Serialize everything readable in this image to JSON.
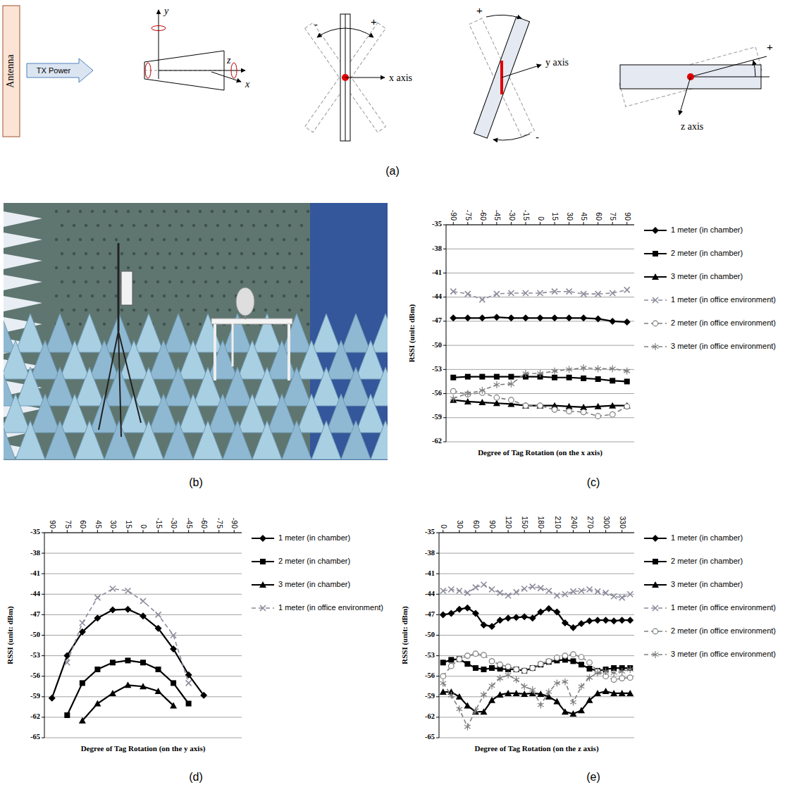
{
  "panels": [
    "(a)",
    "(b)",
    "(c)",
    "(d)",
    "(e)"
  ],
  "diagram": {
    "antenna": "Antenna",
    "tx_power": "TX Power",
    "axis_y": "y",
    "axis_z": "z",
    "axis_x": "x",
    "plus": "+",
    "minus": "-",
    "axis_labels": [
      "x axis",
      "y axis",
      "z axis"
    ]
  },
  "chart_data": [
    {
      "type": "line",
      "x_label": "Degree of Tag Rotation (on the x axis)",
      "y_label": "RSSI (unit: dBm)",
      "x": [
        -90,
        -75,
        -60,
        -45,
        -30,
        -15,
        0,
        15,
        30,
        45,
        60,
        75,
        90
      ],
      "xlim": [
        -97.5,
        97.5
      ],
      "xticks": [
        -90,
        -75,
        -60,
        -45,
        -30,
        -15,
        0,
        15,
        30,
        45,
        60,
        75,
        90
      ],
      "ylim": [
        -62,
        -35
      ],
      "yticks": [
        -35,
        -38,
        -41,
        -44,
        -47,
        -50,
        -53,
        -56,
        -59,
        -62
      ],
      "grid": true,
      "legend": "right",
      "series": [
        {
          "name": "1 meter (in chamber)",
          "color": "#000000",
          "marker": "diamond",
          "line_style": "solid",
          "values": [
            -46.6,
            -46.6,
            -46.6,
            -46.5,
            -46.6,
            -46.6,
            -46.6,
            -46.6,
            -46.6,
            -46.6,
            -46.7,
            -47,
            -47.1
          ]
        },
        {
          "name": "2 meter (in chamber)",
          "color": "#000000",
          "marker": "square",
          "line_style": "solid",
          "values": [
            -54,
            -53.9,
            -53.9,
            -53.9,
            -53.9,
            -53.9,
            -53.9,
            -54,
            -54,
            -54.1,
            -54.2,
            -54.4,
            -54.5
          ]
        },
        {
          "name": "3 meter (in chamber)",
          "color": "#000000",
          "marker": "triangle",
          "line_style": "solid",
          "values": [
            -56.8,
            -57,
            -57.1,
            -57.2,
            -57.3,
            -57.5,
            -57.5,
            -57.5,
            -57.6,
            -57.7,
            -57.6,
            -57.5,
            -57.5
          ]
        },
        {
          "name": "1 meter (in office environment)",
          "color": "#8c8c9c",
          "marker": "x",
          "line_style": "dashed",
          "values": [
            -43.3,
            -43.6,
            -44.3,
            -43.6,
            -43.5,
            -43.5,
            -43.5,
            -43.3,
            -43.3,
            -43.6,
            -43.6,
            -43.5,
            -43.1
          ]
        },
        {
          "name": "2 meter (in office environment)",
          "color": "#7f7f7f",
          "marker": "circle",
          "line_style": "dashed",
          "values": [
            -55.7,
            -56.1,
            -55.9,
            -56.5,
            -56.8,
            -57.5,
            -57.5,
            -58,
            -58.2,
            -58.3,
            -58.8,
            -58.6,
            -57.6
          ]
        },
        {
          "name": "3 meter (in office environment)",
          "color": "#7f7f7f",
          "marker": "asterisk",
          "line_style": "dashed",
          "values": [
            -56.6,
            -56,
            -55.6,
            -54.9,
            -54.8,
            -53.5,
            -53.5,
            -53.2,
            -53,
            -52.8,
            -52.9,
            -52.9,
            -53.2
          ]
        }
      ]
    },
    {
      "type": "line",
      "x_label": "Degree of Tag Rotation (on the y axis)",
      "y_label": "RSSI (unit: dBm)",
      "x": [
        90,
        75,
        60,
        45,
        30,
        15,
        0,
        -15,
        -30,
        -45,
        -60,
        -75,
        -90
      ],
      "xlim": [
        97.5,
        -97.5
      ],
      "xticks": [
        90,
        75,
        60,
        45,
        30,
        15,
        0,
        -15,
        -30,
        -45,
        -60,
        -75,
        -90
      ],
      "ylim": [
        -65,
        -35
      ],
      "yticks": [
        -35,
        -38,
        -41,
        -44,
        -47,
        -50,
        -53,
        -56,
        -59,
        -62,
        -65
      ],
      "grid": true,
      "legend": "right",
      "series": [
        {
          "name": "1 meter (in chamber)",
          "color": "#000000",
          "marker": "diamond",
          "line_style": "solid",
          "values": [
            -59.2,
            -53,
            -49.5,
            -47.5,
            -46.3,
            -46.2,
            -47.2,
            -49,
            -52,
            -55.8,
            -58.8,
            null,
            null
          ]
        },
        {
          "name": "2 meter (in chamber)",
          "color": "#000000",
          "marker": "square",
          "line_style": "solid",
          "values": [
            null,
            -61.7,
            -57,
            -55,
            -54,
            -53.7,
            -54,
            -55,
            -57,
            -60,
            null,
            null,
            null
          ]
        },
        {
          "name": "3 meter (in chamber)",
          "color": "#000000",
          "marker": "triangle",
          "line_style": "solid",
          "values": [
            null,
            null,
            -62.5,
            -60,
            -58.5,
            -57.3,
            -57.5,
            -58.2,
            -60.3,
            null,
            null,
            null,
            null
          ]
        },
        {
          "name": "1 meter (in office environment)",
          "color": "#8c8c9c",
          "marker": "x",
          "line_style": "dashed",
          "values": [
            null,
            -54,
            -48.2,
            -44.5,
            -43.2,
            -43.5,
            -45,
            -47,
            -50,
            -57,
            null,
            null,
            null
          ]
        }
      ]
    },
    {
      "type": "line",
      "x_label": "Degree of Tag Rotation (on the z axis)",
      "y_label": "RSSI (unit: dBm)",
      "x": [
        0,
        15,
        30,
        45,
        60,
        75,
        90,
        105,
        120,
        135,
        150,
        165,
        180,
        195,
        210,
        225,
        240,
        255,
        270,
        285,
        300,
        315,
        330,
        345
      ],
      "xlim": [
        -7.5,
        352.5
      ],
      "xticks": [
        0,
        30,
        60,
        90,
        120,
        150,
        180,
        210,
        240,
        270,
        300,
        330
      ],
      "ylim": [
        -65,
        -35
      ],
      "yticks": [
        -35,
        -38,
        -41,
        -44,
        -47,
        -50,
        -53,
        -56,
        -59,
        -62,
        -65
      ],
      "grid": true,
      "legend": "right",
      "series": [
        {
          "name": "1 meter (in chamber)",
          "color": "#000000",
          "marker": "diamond",
          "line_style": "solid",
          "values": [
            -47,
            -46.8,
            -46.2,
            -46,
            -46.8,
            -48.5,
            -48.7,
            -47.8,
            -47.5,
            -47.4,
            -47.3,
            -47.5,
            -46.6,
            -46.1,
            -46.6,
            -48.2,
            -48.9,
            -48.3,
            -47.9,
            -47.8,
            -47.8,
            -47.9,
            -47.8,
            -47.8
          ]
        },
        {
          "name": "2 meter (in chamber)",
          "color": "#000000",
          "marker": "square",
          "line_style": "solid",
          "values": [
            -54,
            -53.6,
            -53.5,
            -54.2,
            -54.8,
            -55,
            -54.8,
            -54.9,
            -55,
            -55,
            -55.2,
            -54.8,
            -54.3,
            -53.9,
            -53.7,
            -53.6,
            -53.8,
            -54.3,
            -54.9,
            -55.2,
            -55,
            -54.8,
            -54.8,
            -54.8
          ]
        },
        {
          "name": "3 meter (in chamber)",
          "color": "#000000",
          "marker": "triangle",
          "line_style": "solid",
          "values": [
            -58.3,
            -58.3,
            -59,
            -60.3,
            -61.2,
            -61.2,
            -59.5,
            -58.7,
            -58.5,
            -58.5,
            -58.6,
            -58.5,
            -58.6,
            -59,
            -59.7,
            -61.2,
            -61.5,
            -61,
            -59.5,
            -58.5,
            -58.2,
            -58.5,
            -58.5,
            -58.5
          ]
        },
        {
          "name": "1 meter (in office environment)",
          "color": "#8c8c9c",
          "marker": "x",
          "line_style": "dashed",
          "values": [
            -43.5,
            -43.3,
            -43.5,
            -43.8,
            -43,
            -42.6,
            -43.3,
            -43.8,
            -44.2,
            -43.7,
            -43.2,
            -42.9,
            -43.1,
            -43.5,
            -44.2,
            -44,
            -43.6,
            -43.5,
            -43.3,
            -43.6,
            -43.8,
            -44.3,
            -44.5,
            -44
          ]
        },
        {
          "name": "2 meter (in office environment)",
          "color": "#7f7f7f",
          "marker": "circle",
          "line_style": "dashed",
          "values": [
            -56,
            -54.5,
            -53.5,
            -53,
            -52.7,
            -52.9,
            -53.8,
            -54.3,
            -54.6,
            -55,
            -55.2,
            -54.8,
            -54.2,
            -53.8,
            -53.3,
            -53,
            -52.8,
            -53.2,
            -54,
            -55.3,
            -56,
            -56.5,
            -56.3,
            -56.2
          ]
        },
        {
          "name": "3 meter (in office environment)",
          "color": "#7f7f7f",
          "marker": "asterisk",
          "line_style": "dashed",
          "values": [
            -57,
            -58.8,
            -60.8,
            -63.4,
            -61,
            -58.7,
            -57.4,
            -56.3,
            -55.8,
            -56.5,
            -57.5,
            -58,
            -60.2,
            -58.3,
            -57,
            -56.8,
            -59.8,
            -57.5,
            -56.2,
            -55.5,
            -55.3,
            -55.5,
            -55.3,
            -55
          ]
        }
      ]
    }
  ]
}
